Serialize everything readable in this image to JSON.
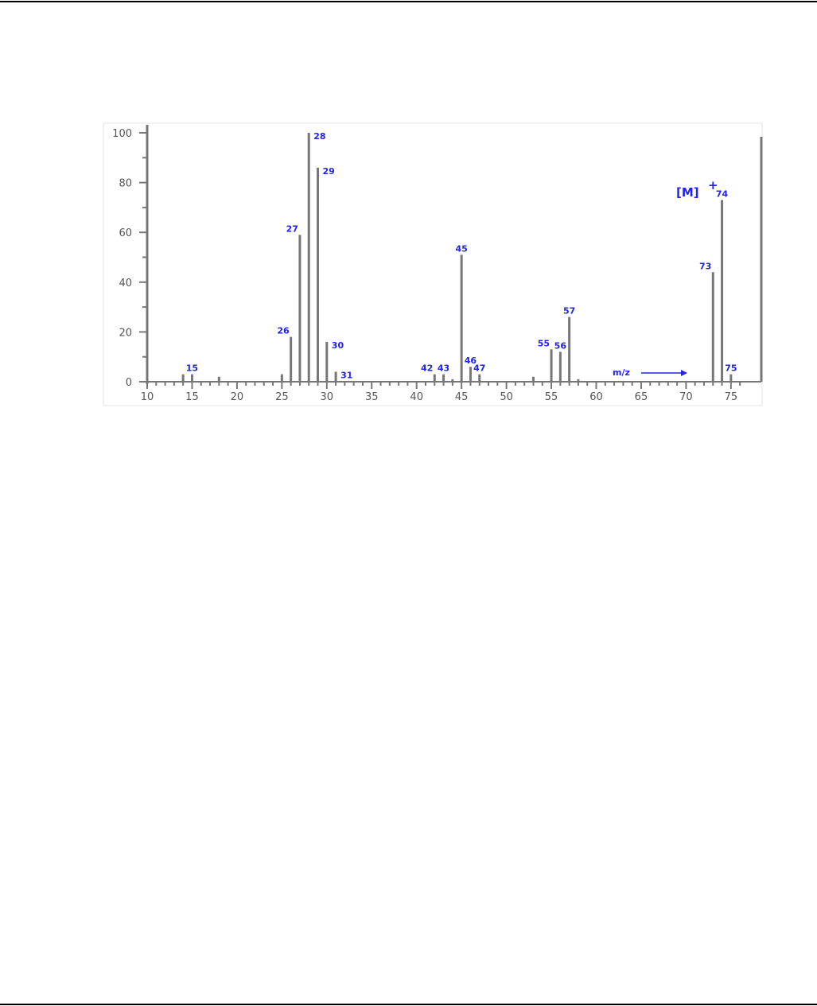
{
  "chart_data": {
    "type": "bar",
    "title": "",
    "xlabel": "m/z",
    "ylabel": "",
    "xlim": [
      10,
      78
    ],
    "ylim": [
      0,
      100
    ],
    "x_ticks": [
      10,
      15,
      20,
      25,
      30,
      35,
      40,
      45,
      50,
      55,
      60,
      65,
      70,
      75
    ],
    "y_ticks": [
      0,
      20,
      40,
      60,
      80,
      100
    ],
    "grid": false,
    "molecular_ion_label": "[M]",
    "molecular_ion_charge": "+",
    "molecular_ion_mz": 74,
    "label_color": "#2222ee",
    "bar_color": "#777777",
    "peaks": [
      {
        "mz": 14,
        "intensity": 3,
        "label": ""
      },
      {
        "mz": 15,
        "intensity": 3,
        "label": "15"
      },
      {
        "mz": 18,
        "intensity": 2,
        "label": ""
      },
      {
        "mz": 25,
        "intensity": 3,
        "label": ""
      },
      {
        "mz": 26,
        "intensity": 18,
        "label": "26"
      },
      {
        "mz": 27,
        "intensity": 59,
        "label": "27"
      },
      {
        "mz": 28,
        "intensity": 100,
        "label": "28"
      },
      {
        "mz": 29,
        "intensity": 86,
        "label": "29"
      },
      {
        "mz": 30,
        "intensity": 16,
        "label": "30"
      },
      {
        "mz": 31,
        "intensity": 4,
        "label": "31"
      },
      {
        "mz": 42,
        "intensity": 3,
        "label": "42"
      },
      {
        "mz": 43,
        "intensity": 3,
        "label": "43"
      },
      {
        "mz": 44,
        "intensity": 1,
        "label": ""
      },
      {
        "mz": 45,
        "intensity": 51,
        "label": "45"
      },
      {
        "mz": 46,
        "intensity": 6,
        "label": "46"
      },
      {
        "mz": 47,
        "intensity": 3,
        "label": "47"
      },
      {
        "mz": 53,
        "intensity": 2,
        "label": ""
      },
      {
        "mz": 55,
        "intensity": 13,
        "label": "55"
      },
      {
        "mz": 56,
        "intensity": 12,
        "label": "56"
      },
      {
        "mz": 57,
        "intensity": 26,
        "label": "57"
      },
      {
        "mz": 58,
        "intensity": 1,
        "label": ""
      },
      {
        "mz": 73,
        "intensity": 44,
        "label": "73"
      },
      {
        "mz": 74,
        "intensity": 73,
        "label": "74"
      },
      {
        "mz": 75,
        "intensity": 3,
        "label": "75"
      }
    ]
  }
}
